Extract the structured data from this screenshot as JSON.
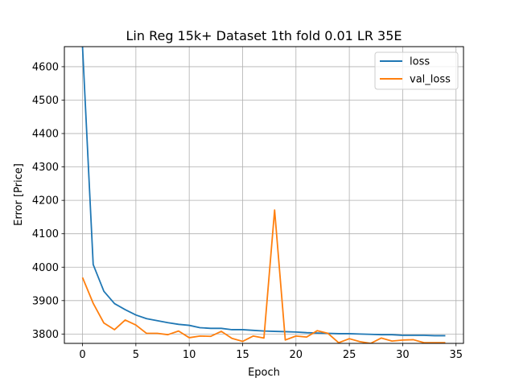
{
  "chart_data": {
    "type": "line",
    "title": "Lin Reg 15k+ Dataset 1th fold 0.01 LR 35E",
    "xlabel": "Epoch",
    "ylabel": "Error [Price]",
    "xlim": [
      -1.7,
      35.7
    ],
    "ylim": [
      3772,
      4660
    ],
    "x_ticks": [
      0,
      5,
      10,
      15,
      20,
      25,
      30,
      35
    ],
    "y_ticks": [
      3800,
      3900,
      4000,
      4100,
      4200,
      4300,
      4400,
      4500,
      4600
    ],
    "grid": true,
    "legend_position": "top-right",
    "x": [
      0,
      1,
      2,
      3,
      4,
      5,
      6,
      7,
      8,
      9,
      10,
      11,
      12,
      13,
      14,
      15,
      16,
      17,
      18,
      19,
      20,
      21,
      22,
      23,
      24,
      25,
      26,
      27,
      28,
      29,
      30,
      31,
      32,
      33,
      34
    ],
    "series": [
      {
        "name": "loss",
        "color": "#1f77b4",
        "values": [
          4660,
          4008,
          3928,
          3891,
          3873,
          3857,
          3846,
          3840,
          3834,
          3829,
          3826,
          3819,
          3817,
          3817,
          3813,
          3813,
          3811,
          3809,
          3808,
          3807,
          3806,
          3804,
          3803,
          3802,
          3801,
          3801,
          3800,
          3799,
          3798,
          3798,
          3796,
          3796,
          3796,
          3795,
          3795
        ]
      },
      {
        "name": "val_loss",
        "color": "#ff7f0e",
        "values": [
          3969,
          3892,
          3833,
          3813,
          3842,
          3827,
          3802,
          3802,
          3798,
          3809,
          3789,
          3794,
          3793,
          3808,
          3787,
          3778,
          3794,
          3788,
          4171,
          3782,
          3794,
          3791,
          3810,
          3802,
          3774,
          3786,
          3777,
          3772,
          3788,
          3779,
          3782,
          3783,
          3774,
          3774,
          3774
        ]
      }
    ]
  }
}
